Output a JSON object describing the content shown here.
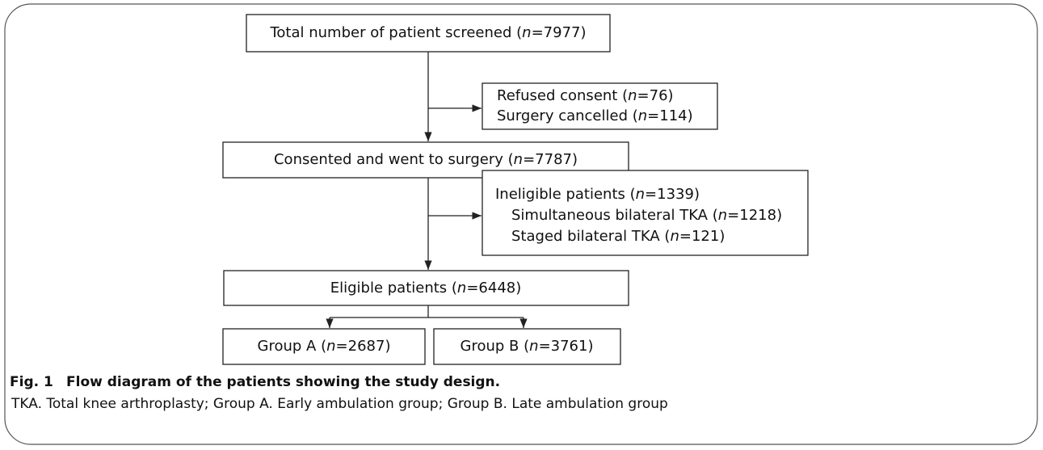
{
  "nodes": [
    {
      "lines": [
        "Total number of patient screened (n=7977)"
      ]
    },
    {
      "lines": [
        "Refused consent (n=76)",
        "Surgery cancelled (n=114)"
      ]
    },
    {
      "lines": [
        "Consented and went to surgery (n=7787)"
      ]
    },
    {
      "lines": [
        "Ineligible patients (n=1339)",
        "Simultaneous bilateral TKA (n=1218)",
        "Staged bilateral TKA (n=121)"
      ]
    },
    {
      "lines": [
        "Eligible patients (n=6448)"
      ]
    },
    {
      "lines": [
        "Group A (n=2687)"
      ]
    },
    {
      "lines": [
        "Group B (n=3761)"
      ]
    }
  ],
  "caption": {
    "label": "Fig. 1",
    "text": "Flow diagram of the patients showing the study design."
  },
  "footnote": "TKA. Total knee arthroplasty; Group A. Early ambulation group; Group B. Late ambulation group"
}
